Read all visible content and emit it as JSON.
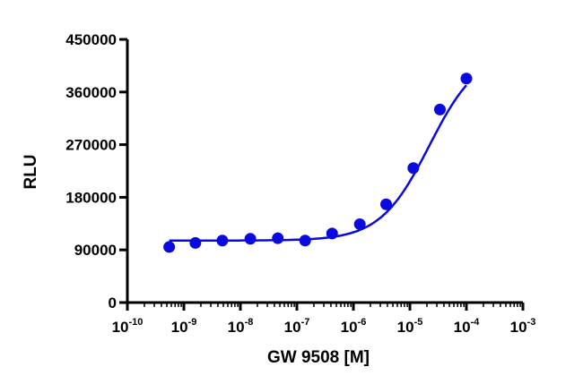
{
  "chart_data": {
    "type": "scatter",
    "title": "",
    "xlabel": "GW 9508 [M]",
    "ylabel": "RLU",
    "x_scale": "log",
    "xlim": [
      1e-10,
      0.001
    ],
    "ylim": [
      0,
      450000
    ],
    "x_tick_labels": [
      {
        "base": "10",
        "exp": "-10"
      },
      {
        "base": "10",
        "exp": "-9"
      },
      {
        "base": "10",
        "exp": "-8"
      },
      {
        "base": "10",
        "exp": "-7"
      },
      {
        "base": "10",
        "exp": "-6"
      },
      {
        "base": "10",
        "exp": "-5"
      },
      {
        "base": "10",
        "exp": "-4"
      },
      {
        "base": "10",
        "exp": "-3"
      }
    ],
    "y_tick_labels": [
      "0",
      "90000",
      "180000",
      "270000",
      "360000",
      "450000"
    ],
    "y_ticks": [
      0,
      90000,
      180000,
      270000,
      360000,
      450000
    ],
    "grid": false,
    "legend": "none",
    "series": [
      {
        "points": [
          [
            5.5e-10,
            95000
          ],
          [
            1.6e-09,
            102000
          ],
          [
            4.8e-09,
            106000
          ],
          [
            1.5e-08,
            109000
          ],
          [
            4.6e-08,
            110000
          ],
          [
            1.4e-07,
            106000
          ],
          [
            4.2e-07,
            118000
          ],
          [
            1.3e-06,
            134000
          ],
          [
            3.8e-06,
            168000
          ],
          [
            1.15e-05,
            230000
          ],
          [
            3.4e-05,
            330000
          ],
          [
            0.0001,
            383000
          ]
        ],
        "fit_curve": {
          "model": "sigmoidal dose-response",
          "bottom": 106000,
          "top": 430000,
          "ec50": 2.2e-05,
          "hill_slope": 1.0
        },
        "color": "#0a0adf"
      }
    ]
  }
}
